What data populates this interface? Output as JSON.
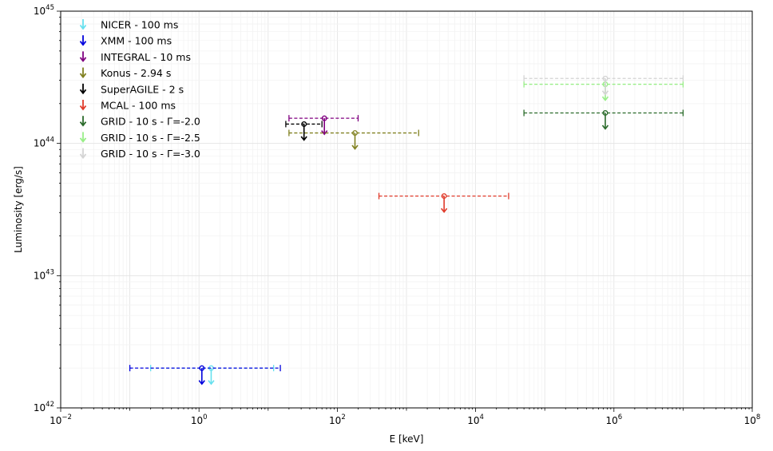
{
  "chart_data": {
    "type": "scatter",
    "title": "",
    "xlabel": "E [keV]",
    "ylabel": "Luminosity [erg/s]",
    "xscale": "log",
    "yscale": "log",
    "xlim": [
      0.01,
      100000000
    ],
    "ylim": [
      1e+42,
      1e+45
    ],
    "grid": true,
    "legend_position": "top-left",
    "x_ticks": [
      {
        "base": "10",
        "exp": "−2"
      },
      {
        "base": "10",
        "exp": "0"
      },
      {
        "base": "10",
        "exp": "2"
      },
      {
        "base": "10",
        "exp": "4"
      },
      {
        "base": "10",
        "exp": "6"
      },
      {
        "base": "10",
        "exp": "8"
      }
    ],
    "y_ticks": [
      {
        "base": "10",
        "exp": "42"
      },
      {
        "base": "10",
        "exp": "43"
      },
      {
        "base": "10",
        "exp": "44"
      },
      {
        "base": "10",
        "exp": "45"
      }
    ],
    "series": [
      {
        "name": "NICER - 100 ms",
        "color": "#66e0ee",
        "x": 1.5,
        "y": 2e+42,
        "xmin": 0.2,
        "xmax": 12
      },
      {
        "name": "XMM - 100 ms",
        "color": "#0000dd",
        "x": 1.1,
        "y": 2e+42,
        "xmin": 0.1,
        "xmax": 15
      },
      {
        "name": "INTEGRAL - 10 ms",
        "color": "#800080",
        "x": 65,
        "y": 1.55e+44,
        "xmin": 20,
        "xmax": 200
      },
      {
        "name": "Konus - 2.94 s",
        "color": "#808020",
        "x": 180,
        "y": 1.2e+44,
        "xmin": 20,
        "xmax": 1500
      },
      {
        "name": "SuperAGILE - 2 s",
        "color": "#000000",
        "x": 33,
        "y": 1.4e+44,
        "xmin": 18,
        "xmax": 60
      },
      {
        "name": "MCAL - 100 ms",
        "color": "#e03a2a",
        "x": 3500,
        "y": 4e+43,
        "xmin": 400,
        "xmax": 30000
      },
      {
        "name": "GRID - 10 s - Γ=-2.0",
        "color": "#2a6a2a",
        "x": 750000,
        "y": 1.7e+44,
        "xmin": 50000,
        "xmax": 10000000
      },
      {
        "name": "GRID - 10 s - Γ=-2.5",
        "color": "#99ee88",
        "x": 750000,
        "y": 2.8e+44,
        "xmin": 50000,
        "xmax": 10000000
      },
      {
        "name": "GRID - 10 s - Γ=-3.0",
        "color": "#d4d4d4",
        "x": 750000,
        "y": 3.1e+44,
        "xmin": 50000,
        "xmax": 10000000
      }
    ]
  }
}
